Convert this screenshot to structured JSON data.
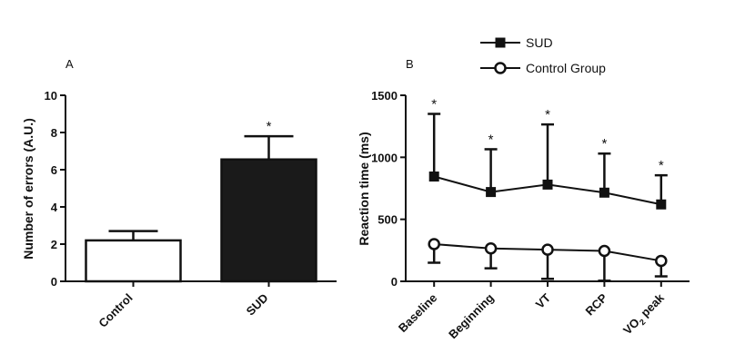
{
  "chart_data": [
    {
      "panel": "A",
      "type": "bar",
      "categories": [
        "Control",
        "SUD"
      ],
      "values": [
        2.2,
        6.55
      ],
      "error_upper": [
        2.7,
        7.8
      ],
      "significance": [
        "",
        "*"
      ],
      "ylabel": "Number of errors (A.U.)",
      "ylim": [
        0,
        10
      ],
      "yticks": [
        0,
        2,
        4,
        6,
        8,
        10
      ],
      "colors": [
        "#ffffff",
        "#1a1a1a"
      ]
    },
    {
      "panel": "B",
      "type": "line",
      "categories": [
        "Baseline",
        "Beginning",
        "VT",
        "RCP",
        "VO2 peak"
      ],
      "series": [
        {
          "name": "SUD",
          "marker": "filled-square",
          "values": [
            845,
            720,
            780,
            715,
            620
          ],
          "error_upper": [
            1350,
            1065,
            1265,
            1030,
            855
          ],
          "significance": [
            "*",
            "*",
            "*",
            "*",
            "*"
          ]
        },
        {
          "name": "Control Group",
          "marker": "open-circle",
          "values": [
            300,
            265,
            255,
            245,
            165
          ],
          "error_lower": [
            150,
            105,
            20,
            5,
            40
          ]
        }
      ],
      "ylabel": "Reaction time (ms)",
      "ylim": [
        0,
        1500
      ],
      "yticks": [
        0,
        500,
        1000,
        1500
      ],
      "legend_position": "top"
    }
  ]
}
